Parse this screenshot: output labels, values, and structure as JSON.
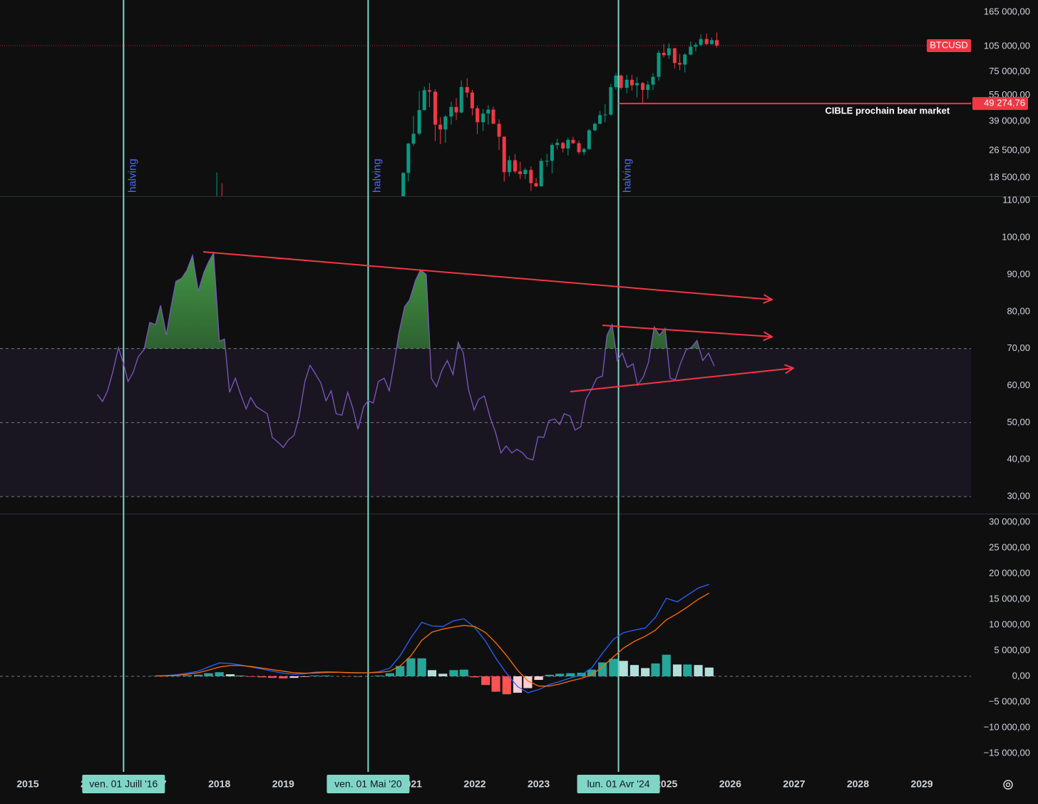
{
  "chart_data": [
    {
      "type": "candlestick",
      "symbol": "BTCUSD",
      "log_scale": true,
      "grid": false,
      "up_color": "#089981",
      "down_color": "#f23645",
      "xlim": [
        2014.565,
        2029.77
      ],
      "ylim": [
        14480,
        193800
      ],
      "yticks": [
        {
          "value": 165000,
          "label": "165 000,00"
        },
        {
          "value": 105000,
          "label": "105 000,00"
        },
        {
          "value": 75000,
          "label": "75 000,00"
        },
        {
          "value": 55000,
          "label": "55 000,00"
        },
        {
          "value": 39000,
          "label": "39 000,00"
        },
        {
          "value": 26500,
          "label": "26 500,00"
        },
        {
          "value": 18500,
          "label": "18 500,00"
        }
      ],
      "x": [
        2017.96,
        2018.04,
        2020.88,
        2020.96,
        2021.04,
        2021.13,
        2021.21,
        2021.29,
        2021.38,
        2021.46,
        2021.54,
        2021.63,
        2021.71,
        2021.79,
        2021.88,
        2021.96,
        2022.04,
        2022.13,
        2022.21,
        2022.29,
        2022.38,
        2022.46,
        2022.54,
        2022.63,
        2022.71,
        2022.79,
        2022.88,
        2022.96,
        2023.04,
        2023.13,
        2023.21,
        2023.29,
        2023.38,
        2023.46,
        2023.54,
        2023.63,
        2023.71,
        2023.79,
        2023.88,
        2023.96,
        2024.04,
        2024.13,
        2024.21,
        2024.29,
        2024.38,
        2024.46,
        2024.54,
        2024.63,
        2024.71,
        2024.79,
        2024.88,
        2024.96,
        2025.04,
        2025.13,
        2025.21,
        2025.29,
        2025.38,
        2025.46,
        2025.54,
        2025.63,
        2025.71,
        2025.79
      ],
      "open": [
        10900,
        14150,
        13800,
        19700,
        29000,
        33100,
        45200,
        58800,
        57700,
        37300,
        35000,
        41500,
        47100,
        43800,
        61300,
        57000,
        46300,
        38500,
        43200,
        45500,
        37700,
        31800,
        19900,
        23300,
        20100,
        19400,
        20500,
        17200,
        16500,
        23100,
        23100,
        28500,
        29300,
        27200,
        30500,
        29200,
        25900,
        27000,
        34600,
        37700,
        42300,
        42600,
        61200,
        71300,
        60700,
        67500,
        62700,
        64600,
        59000,
        63300,
        70200,
        96400,
        93400,
        102400,
        84300,
        82500,
        94200,
        104600,
        107100,
        115700,
        108200,
        114000
      ],
      "high": [
        19800,
        17200,
        19860,
        29300,
        41900,
        58300,
        61700,
        64800,
        59500,
        41300,
        42300,
        50500,
        52900,
        67000,
        69000,
        59100,
        47900,
        45800,
        48200,
        47400,
        40000,
        31900,
        24700,
        25200,
        22800,
        21100,
        21500,
        18400,
        23900,
        25300,
        29200,
        31000,
        29800,
        31400,
        31800,
        30200,
        27500,
        35200,
        38400,
        44700,
        48900,
        64000,
        73800,
        72700,
        71900,
        71900,
        70000,
        65600,
        66500,
        73600,
        99600,
        108300,
        109400,
        102500,
        95000,
        95800,
        112000,
        110500,
        123200,
        124400,
        117900,
        126200
      ],
      "low": [
        10900,
        9400,
        13200,
        17600,
        28100,
        32400,
        45000,
        47000,
        30000,
        28800,
        29300,
        37300,
        39600,
        43300,
        53300,
        42000,
        32900,
        34300,
        37200,
        37600,
        26700,
        17600,
        18800,
        19600,
        18200,
        18200,
        15500,
        16300,
        16500,
        21400,
        19600,
        26900,
        25800,
        24800,
        28900,
        25200,
        24900,
        26600,
        34100,
        37600,
        38500,
        41900,
        59300,
        59200,
        56600,
        58500,
        53600,
        49100,
        52600,
        58900,
        66800,
        90700,
        89200,
        78200,
        76600,
        74400,
        93300,
        98200,
        105100,
        107300,
        107300,
        103500
      ],
      "close": [
        14150,
        10200,
        19700,
        29000,
        33100,
        45200,
        58800,
        57700,
        37300,
        35000,
        41500,
        47100,
        43800,
        61300,
        57000,
        46300,
        38500,
        43200,
        45500,
        37700,
        31800,
        19900,
        23300,
        20100,
        19400,
        20500,
        17200,
        16500,
        23100,
        23100,
        28500,
        29300,
        27200,
        30500,
        29200,
        25900,
        27000,
        34600,
        37700,
        42300,
        42600,
        61200,
        71300,
        60700,
        67500,
        62700,
        64600,
        59000,
        63300,
        70200,
        96400,
        93400,
        102400,
        84300,
        82500,
        94200,
        104600,
        107100,
        115700,
        108200,
        114000,
        106000
      ],
      "halvings": [
        {
          "x": 2016.5,
          "label": "halving",
          "date": "ven. 01 Juill '16"
        },
        {
          "x": 2020.33,
          "label": "halving",
          "date": "ven. 01 Mai '20"
        },
        {
          "x": 2024.25,
          "label": "halving",
          "date": "lun. 01 Avr '24"
        }
      ],
      "target": {
        "value": 49274.76,
        "label": "49 274,76",
        "text": "CIBLE prochain bear market",
        "color": "#f23645"
      }
    },
    {
      "type": "line",
      "color": "#7e57c2",
      "band_color": "#7e57c2",
      "overbought_color": "#4caf50",
      "grid": false,
      "xlim": [
        2014.565,
        2029.77
      ],
      "ylim": [
        25.4,
        111.2
      ],
      "yticks": [
        {
          "value": 110,
          "label": "110,00"
        },
        {
          "value": 100,
          "label": "100,00"
        },
        {
          "value": 90,
          "label": "90,00"
        },
        {
          "value": 80,
          "label": "80,00"
        },
        {
          "value": 70,
          "label": "70,00"
        },
        {
          "value": 60,
          "label": "60,00"
        },
        {
          "value": 50,
          "label": "50,00"
        },
        {
          "value": 40,
          "label": "40,00"
        },
        {
          "value": 30,
          "label": "30,00"
        }
      ],
      "levels": [
        70,
        50,
        30
      ],
      "x": [
        2016.09,
        2016.17,
        2016.25,
        2016.33,
        2016.42,
        2016.5,
        2016.57,
        2016.65,
        2016.73,
        2016.82,
        2016.91,
        2017.0,
        2017.08,
        2017.17,
        2017.24,
        2017.32,
        2017.41,
        2017.49,
        2017.58,
        2017.67,
        2017.76,
        2017.83,
        2017.91,
        2018.0,
        2018.08,
        2018.16,
        2018.25,
        2018.33,
        2018.42,
        2018.49,
        2018.58,
        2018.66,
        2018.75,
        2018.83,
        2018.92,
        2019.0,
        2019.08,
        2019.17,
        2019.25,
        2019.34,
        2019.42,
        2019.51,
        2019.59,
        2019.67,
        2019.75,
        2019.83,
        2019.92,
        2020.01,
        2020.09,
        2020.17,
        2020.26,
        2020.33,
        2020.41,
        2020.49,
        2020.58,
        2020.66,
        2020.74,
        2020.81,
        2020.9,
        2020.98,
        2021.07,
        2021.15,
        2021.24,
        2021.32,
        2021.4,
        2021.48,
        2021.57,
        2021.66,
        2021.74,
        2021.82,
        2021.9,
        2021.99,
        2022.06,
        2022.15,
        2022.24,
        2022.32,
        2022.41,
        2022.49,
        2022.58,
        2022.66,
        2022.75,
        2022.82,
        2022.91,
        2022.99,
        2023.08,
        2023.16,
        2023.25,
        2023.33,
        2023.4,
        2023.49,
        2023.57,
        2023.66,
        2023.74,
        2023.83,
        2023.91,
        2024.0,
        2024.07,
        2024.15,
        2024.23,
        2024.31,
        2024.39,
        2024.48,
        2024.55,
        2024.64,
        2024.72,
        2024.81,
        2024.89,
        2024.98,
        2025.06,
        2025.14,
        2025.22,
        2025.31,
        2025.39,
        2025.48,
        2025.57,
        2025.66,
        2025.75
      ],
      "values": [
        57.6,
        55.7,
        58.6,
        63.6,
        70.3,
        65.9,
        61.1,
        63.6,
        67.8,
        69.7,
        77.1,
        76.5,
        81.7,
        73.6,
        80.9,
        88.2,
        89.0,
        91.1,
        95.2,
        85.5,
        90.7,
        93.4,
        95.9,
        72.0,
        72.6,
        58.2,
        62.0,
        57.8,
        53.7,
        56.8,
        54.3,
        53.4,
        52.4,
        46.0,
        44.7,
        43.3,
        45.3,
        46.6,
        51.8,
        61.1,
        65.5,
        63.0,
        60.7,
        55.9,
        58.6,
        52.4,
        52.0,
        58.2,
        53.9,
        48.2,
        54.3,
        55.9,
        55.3,
        61.1,
        62.0,
        58.6,
        66.3,
        74.0,
        81.3,
        83.2,
        88.4,
        91.3,
        90.0,
        62.0,
        59.7,
        63.9,
        66.8,
        63.0,
        71.7,
        68.8,
        59.1,
        53.4,
        56.3,
        57.2,
        51.4,
        47.6,
        41.8,
        43.7,
        41.8,
        42.8,
        41.8,
        40.4,
        39.9,
        46.2,
        46.0,
        50.5,
        51.0,
        49.5,
        52.4,
        51.8,
        48.0,
        48.9,
        56.3,
        59.1,
        62.0,
        62.6,
        73.6,
        76.5,
        66.8,
        68.8,
        64.9,
        65.9,
        60.1,
        62.4,
        66.3,
        75.9,
        73.6,
        75.5,
        62.0,
        61.6,
        65.9,
        69.7,
        70.3,
        72.2,
        66.8,
        68.8,
        65.3
      ]
    },
    {
      "type": "macd",
      "grid": false,
      "zero_line": true,
      "xlim": [
        2014.565,
        2029.77
      ],
      "ylim": [
        -18611,
        31667
      ],
      "xticks": [
        2015,
        2016,
        2017,
        2018,
        2019,
        2020,
        2021,
        2022,
        2023,
        2024,
        2025,
        2026,
        2027,
        2028,
        2029
      ],
      "yticks": [
        {
          "value": 30000,
          "label": "30 000,00"
        },
        {
          "value": 25000,
          "label": "25 000,00"
        },
        {
          "value": 20000,
          "label": "20 000,00"
        },
        {
          "value": 15000,
          "label": "15 000,00"
        },
        {
          "value": 10000,
          "label": "10 000,00"
        },
        {
          "value": 5000,
          "label": "5 000,00"
        },
        {
          "value": 0,
          "label": "0,00"
        },
        {
          "value": -5000,
          "label": "−5 000,00"
        },
        {
          "value": -10000,
          "label": "−10 000,00"
        },
        {
          "value": -15000,
          "label": "−15 000,00"
        }
      ],
      "x": [
        2017.0,
        2017.17,
        2017.33,
        2017.5,
        2017.67,
        2017.83,
        2018.0,
        2018.17,
        2018.33,
        2018.5,
        2018.67,
        2018.83,
        2019.0,
        2019.17,
        2019.33,
        2019.5,
        2019.67,
        2019.83,
        2020.0,
        2020.17,
        2020.33,
        2020.5,
        2020.67,
        2020.83,
        2021.0,
        2021.17,
        2021.33,
        2021.5,
        2021.67,
        2021.83,
        2022.0,
        2022.17,
        2022.33,
        2022.5,
        2022.67,
        2022.83,
        2023.0,
        2023.17,
        2023.33,
        2023.5,
        2023.67,
        2023.83,
        2024.0,
        2024.17,
        2024.33,
        2024.5,
        2024.67,
        2024.83,
        2025.0,
        2025.17,
        2025.33,
        2025.5,
        2025.67
      ],
      "histogram": {
        "colors": [
          "#26a69a",
          "#b2dfdb",
          "#ff5252",
          "#ffcdd2"
        ],
        "values": [
          50,
          50,
          100,
          200,
          300,
          600,
          800,
          400,
          100,
          -100,
          -200,
          -300,
          -400,
          -300,
          -100,
          150,
          150,
          0,
          -50,
          -50,
          0,
          150,
          600,
          2000,
          3500,
          3500,
          1200,
          500,
          1200,
          1300,
          -200,
          -1700,
          -3000,
          -3500,
          -3200,
          -2300,
          -700,
          300,
          500,
          600,
          700,
          1300,
          2700,
          3400,
          3000,
          2200,
          1600,
          2500,
          4200,
          2300,
          2300,
          2200,
          1700
        ]
      },
      "series": [
        {
          "color": "#2962ff",
          "values": [
            100,
            150,
            300,
            600,
            1000,
            1800,
            2600,
            2500,
            2200,
            1800,
            1400,
            1000,
            600,
            400,
            500,
            800,
            900,
            800,
            700,
            650,
            700,
            900,
            1600,
            4000,
            7500,
            10500,
            9800,
            9700,
            10800,
            11200,
            9500,
            6800,
            3500,
            500,
            -2000,
            -3200,
            -2600,
            -1600,
            -1000,
            -300,
            300,
            1600,
            4500,
            7200,
            8500,
            9000,
            9400,
            11500,
            15200,
            14500,
            15800,
            17200,
            17900
          ]
        },
        {
          "color": "#ff6d00",
          "values": [
            50,
            100,
            200,
            400,
            700,
            1200,
            1800,
            2100,
            2100,
            1900,
            1600,
            1300,
            1000,
            700,
            600,
            650,
            750,
            800,
            750,
            700,
            700,
            750,
            1000,
            2000,
            4000,
            7000,
            8600,
            9200,
            9600,
            9900,
            9700,
            8500,
            6500,
            4000,
            1200,
            -900,
            -1900,
            -1900,
            -1500,
            -900,
            -400,
            300,
            1800,
            3800,
            5500,
            6800,
            7800,
            9000,
            11000,
            12200,
            13500,
            15000,
            16200
          ]
        }
      ]
    }
  ]
}
